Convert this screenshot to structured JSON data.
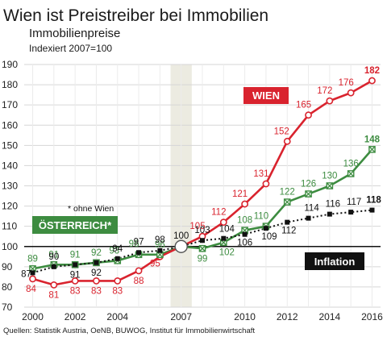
{
  "header": {
    "title": "Wien ist Preistreiber bei Immobilien",
    "subtitle": "Immobilienpreise",
    "index_note": "Indexiert 2007=100"
  },
  "source": "Quellen: Statistik Austria, OeNB, BUWOG, Institut für Immobilienwirtschaft",
  "annotations": {
    "oesterreich_note": "* ohne Wien",
    "base_value": "100"
  },
  "colors": {
    "wien": "#d9232e",
    "oesterreich": "#3d8c40",
    "inflation": "#111111",
    "grid": "#d6d6d6",
    "highlight": "#ecebe1"
  },
  "chart_data": {
    "type": "line",
    "title": "Wien ist Preistreiber bei Immobilien",
    "subtitle": "Immobilienpreise",
    "xlabel": "",
    "ylabel": "",
    "x": [
      2000,
      2001,
      2002,
      2003,
      2004,
      2005,
      2006,
      2007,
      2008,
      2009,
      2010,
      2011,
      2012,
      2013,
      2014,
      2015,
      2016
    ],
    "x_tick_labels": [
      "2000",
      "2002",
      "2004",
      "2007",
      "2010",
      "2012",
      "2014",
      "2016"
    ],
    "x_tick_values": [
      2000,
      2002,
      2004,
      2007,
      2010,
      2012,
      2014,
      2016
    ],
    "y_ticks": [
      70,
      80,
      90,
      100,
      110,
      120,
      130,
      140,
      150,
      160,
      170,
      180,
      190
    ],
    "ylim": [
      70,
      190
    ],
    "xlim": [
      1999.6,
      2016.4
    ],
    "highlight_x": 2007,
    "grid": true,
    "series": [
      {
        "name": "WIEN",
        "key": "wien",
        "values": [
          84,
          81,
          83,
          83,
          83,
          88,
          95,
          100,
          105,
          112,
          121,
          131,
          152,
          165,
          172,
          176,
          182
        ]
      },
      {
        "name": "ÖSTERREICH*",
        "key": "oesterreich",
        "values": [
          89,
          91,
          91,
          92,
          93,
          96,
          96,
          100,
          99,
          102,
          108,
          110,
          122,
          126,
          130,
          136,
          148
        ]
      },
      {
        "name": "Inflation",
        "key": "inflation",
        "values": [
          87,
          90,
          91,
          92,
          94,
          97,
          98,
          100,
          103,
          104,
          106,
          109,
          112,
          114,
          116,
          117,
          118
        ]
      }
    ]
  }
}
